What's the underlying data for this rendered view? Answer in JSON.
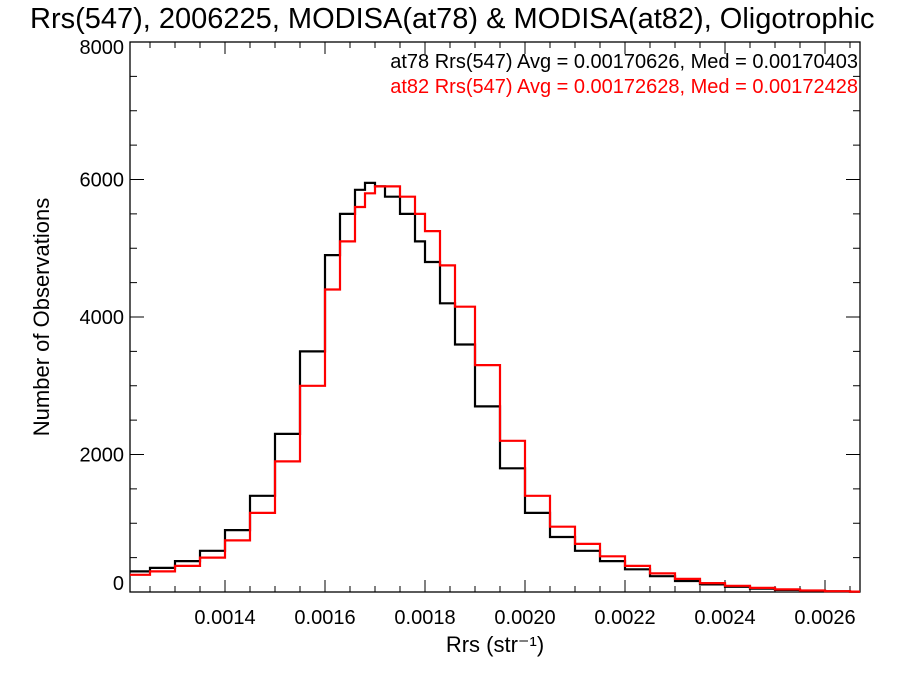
{
  "chart_data": {
    "type": "line",
    "title": "Rrs(547), 2006225, MODISA(at78) & MODISA(at82), Oligotrophic",
    "xlabel": "Rrs (str⁻¹)",
    "ylabel": "Number of Observations",
    "xlim": [
      0.00121,
      0.00267
    ],
    "ylim": [
      0,
      8000
    ],
    "x_ticks": [
      0.0014,
      0.0016,
      0.0018,
      0.002,
      0.0022,
      0.0024,
      0.0026
    ],
    "x_tick_labels": [
      "0.0014",
      "0.0016",
      "0.0018",
      "0.0020",
      "0.0022",
      "0.0024",
      "0.0026"
    ],
    "y_ticks": [
      0,
      2000,
      4000,
      6000,
      8000
    ],
    "y_tick_labels": [
      "0",
      "2000",
      "4000",
      "6000",
      "8000"
    ],
    "grid": false,
    "legend_position": "top-right",
    "series": [
      {
        "name": "at78",
        "color": "#000000",
        "annotation": "at78 Rrs(547) Avg = 0.00170626, Med = 0.00170403",
        "x": [
          0.00121,
          0.00125,
          0.0013,
          0.00135,
          0.0014,
          0.00145,
          0.0015,
          0.00155,
          0.0016,
          0.00163,
          0.00166,
          0.00168,
          0.0017,
          0.00172,
          0.00175,
          0.00178,
          0.0018,
          0.00183,
          0.00186,
          0.0019,
          0.00195,
          0.002,
          0.00205,
          0.0021,
          0.00215,
          0.0022,
          0.00225,
          0.0023,
          0.00235,
          0.0024,
          0.00245,
          0.0025,
          0.00255,
          0.0026,
          0.00265
        ],
        "values": [
          300,
          350,
          450,
          600,
          900,
          1400,
          2300,
          3500,
          4900,
          5500,
          5850,
          5950,
          5900,
          5750,
          5500,
          5100,
          4800,
          4200,
          3600,
          2700,
          1800,
          1150,
          800,
          600,
          450,
          330,
          230,
          160,
          110,
          75,
          50,
          30,
          18,
          10,
          5
        ]
      },
      {
        "name": "at82",
        "color": "#ff0000",
        "annotation": "at82 Rrs(547) Avg = 0.00172628, Med = 0.00172428",
        "x": [
          0.00121,
          0.00125,
          0.0013,
          0.00135,
          0.0014,
          0.00145,
          0.0015,
          0.00155,
          0.0016,
          0.00163,
          0.00166,
          0.00168,
          0.0017,
          0.00172,
          0.00175,
          0.00178,
          0.0018,
          0.00183,
          0.00186,
          0.0019,
          0.00195,
          0.002,
          0.00205,
          0.0021,
          0.00215,
          0.0022,
          0.00225,
          0.0023,
          0.00235,
          0.0024,
          0.00245,
          0.0025,
          0.00255,
          0.0026,
          0.00265
        ],
        "values": [
          250,
          300,
          380,
          500,
          750,
          1150,
          1900,
          3000,
          4400,
          5100,
          5600,
          5800,
          5900,
          5900,
          5750,
          5500,
          5250,
          4750,
          4150,
          3300,
          2200,
          1400,
          950,
          700,
          520,
          380,
          270,
          190,
          130,
          90,
          60,
          38,
          22,
          12,
          6
        ]
      }
    ]
  }
}
